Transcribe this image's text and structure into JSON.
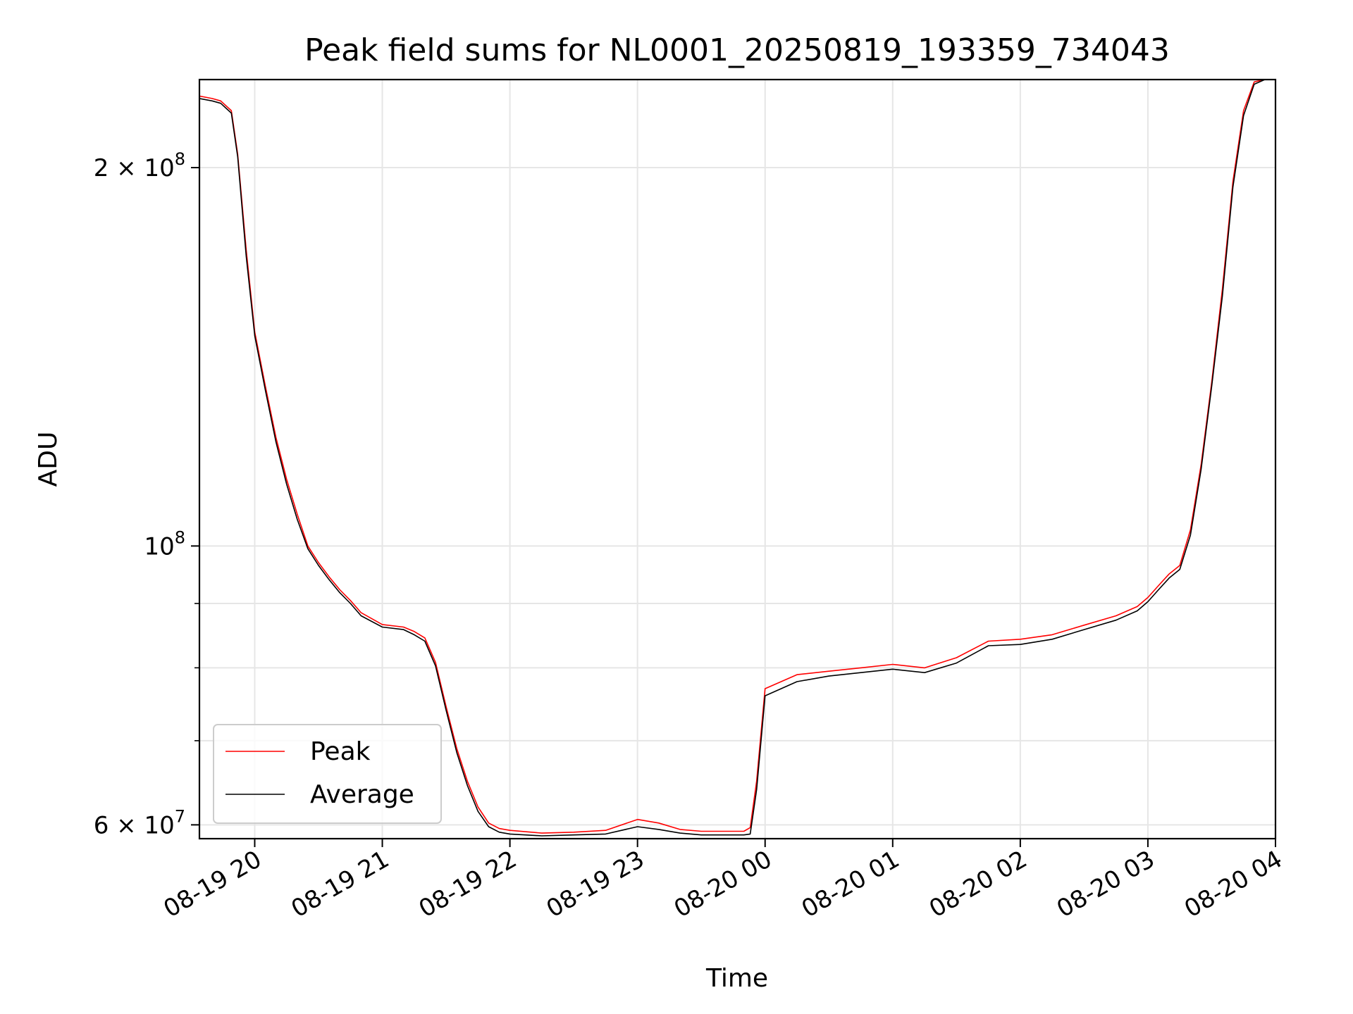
{
  "chart_data": {
    "type": "line",
    "title": "Peak field sums for NL0001_20250819_193359_734043",
    "xlabel": "Time",
    "ylabel": "ADU",
    "yscale": "log",
    "ylim": [
      58500000,
      235000000
    ],
    "xlim": [
      "2025-08-19 19:34",
      "2025-08-20 04:00"
    ],
    "grid": true,
    "legend_position": "lower-left",
    "x_ticks": [
      {
        "t": "2025-08-19 20:00",
        "label": "08-19 20"
      },
      {
        "t": "2025-08-19 21:00",
        "label": "08-19 21"
      },
      {
        "t": "2025-08-19 22:00",
        "label": "08-19 22"
      },
      {
        "t": "2025-08-19 23:00",
        "label": "08-19 23"
      },
      {
        "t": "2025-08-20 00:00",
        "label": "08-20 00"
      },
      {
        "t": "2025-08-20 01:00",
        "label": "08-20 01"
      },
      {
        "t": "2025-08-20 02:00",
        "label": "08-20 02"
      },
      {
        "t": "2025-08-20 03:00",
        "label": "08-20 03"
      },
      {
        "t": "2025-08-20 04:00",
        "label": "08-20 04"
      }
    ],
    "y_ticks_major": [
      {
        "value": 60000000,
        "base": "6 × 10",
        "exp": "7"
      },
      {
        "value": 100000000,
        "base": "10",
        "exp": "8"
      },
      {
        "value": 200000000,
        "base": "2 × 10",
        "exp": "8"
      }
    ],
    "y_ticks_minor": [
      70000000,
      80000000,
      90000000
    ],
    "series": [
      {
        "name": "Peak",
        "color": "#ff0000",
        "x": [
          "2025-08-19 19:34",
          "2025-08-19 19:40",
          "2025-08-19 19:44",
          "2025-08-19 19:49",
          "2025-08-19 19:52",
          "2025-08-19 19:56",
          "2025-08-19 20:00",
          "2025-08-19 20:05",
          "2025-08-19 20:10",
          "2025-08-19 20:15",
          "2025-08-19 20:20",
          "2025-08-19 20:25",
          "2025-08-19 20:30",
          "2025-08-19 20:35",
          "2025-08-19 20:40",
          "2025-08-19 20:45",
          "2025-08-19 20:50",
          "2025-08-19 21:00",
          "2025-08-19 21:10",
          "2025-08-19 21:15",
          "2025-08-19 21:20",
          "2025-08-19 21:25",
          "2025-08-19 21:30",
          "2025-08-19 21:35",
          "2025-08-19 21:40",
          "2025-08-19 21:45",
          "2025-08-19 21:50",
          "2025-08-19 21:55",
          "2025-08-19 22:00",
          "2025-08-19 22:15",
          "2025-08-19 22:30",
          "2025-08-19 22:45",
          "2025-08-19 23:00",
          "2025-08-19 23:10",
          "2025-08-19 23:20",
          "2025-08-19 23:30",
          "2025-08-19 23:40",
          "2025-08-19 23:50",
          "2025-08-19 23:53",
          "2025-08-19 23:56",
          "2025-08-20 00:00",
          "2025-08-20 00:15",
          "2025-08-20 00:30",
          "2025-08-20 00:45",
          "2025-08-20 01:00",
          "2025-08-20 01:15",
          "2025-08-20 01:30",
          "2025-08-20 01:45",
          "2025-08-20 02:00",
          "2025-08-20 02:15",
          "2025-08-20 02:30",
          "2025-08-20 02:45",
          "2025-08-20 02:55",
          "2025-08-20 03:00",
          "2025-08-20 03:05",
          "2025-08-20 03:10",
          "2025-08-20 03:15",
          "2025-08-20 03:20",
          "2025-08-20 03:25",
          "2025-08-20 03:30",
          "2025-08-20 03:35",
          "2025-08-20 03:40",
          "2025-08-20 03:45",
          "2025-08-20 03:50",
          "2025-08-20 03:55"
        ],
        "values": [
          228000000,
          227000000,
          226000000,
          222000000,
          205000000,
          172000000,
          148000000,
          134000000,
          122000000,
          113000000,
          106000000,
          100000000,
          97000000,
          94500000,
          92300000,
          90500000,
          88500000,
          86600000,
          86200000,
          85500000,
          84500000,
          80800000,
          74500000,
          69000000,
          65000000,
          62000000,
          60200000,
          59600000,
          59400000,
          59100000,
          59200000,
          59400000,
          60600000,
          60200000,
          59500000,
          59300000,
          59300000,
          59300000,
          59700000,
          65000000,
          77000000,
          79000000,
          79500000,
          80000000,
          80500000,
          80000000,
          81500000,
          84000000,
          84300000,
          85000000,
          86500000,
          88000000,
          89500000,
          91000000,
          93000000,
          95000000,
          96500000,
          103000000,
          116000000,
          135000000,
          160000000,
          195000000,
          222000000,
          234000000,
          235000000
        ]
      },
      {
        "name": "Average",
        "color": "#000000",
        "x": [
          "2025-08-19 19:34",
          "2025-08-19 19:40",
          "2025-08-19 19:44",
          "2025-08-19 19:49",
          "2025-08-19 19:52",
          "2025-08-19 19:56",
          "2025-08-19 20:00",
          "2025-08-19 20:05",
          "2025-08-19 20:10",
          "2025-08-19 20:15",
          "2025-08-19 20:20",
          "2025-08-19 20:25",
          "2025-08-19 20:30",
          "2025-08-19 20:35",
          "2025-08-19 20:40",
          "2025-08-19 20:45",
          "2025-08-19 20:50",
          "2025-08-19 21:00",
          "2025-08-19 21:10",
          "2025-08-19 21:15",
          "2025-08-19 21:20",
          "2025-08-19 21:25",
          "2025-08-19 21:30",
          "2025-08-19 21:35",
          "2025-08-19 21:40",
          "2025-08-19 21:45",
          "2025-08-19 21:50",
          "2025-08-19 21:55",
          "2025-08-19 22:00",
          "2025-08-19 22:15",
          "2025-08-19 22:30",
          "2025-08-19 22:45",
          "2025-08-19 23:00",
          "2025-08-19 23:10",
          "2025-08-19 23:20",
          "2025-08-19 23:30",
          "2025-08-19 23:40",
          "2025-08-19 23:50",
          "2025-08-19 23:53",
          "2025-08-19 23:56",
          "2025-08-20 00:00",
          "2025-08-20 00:15",
          "2025-08-20 00:30",
          "2025-08-20 00:45",
          "2025-08-20 01:00",
          "2025-08-20 01:15",
          "2025-08-20 01:30",
          "2025-08-20 01:45",
          "2025-08-20 02:00",
          "2025-08-20 02:15",
          "2025-08-20 02:30",
          "2025-08-20 02:45",
          "2025-08-20 02:55",
          "2025-08-20 03:00",
          "2025-08-20 03:05",
          "2025-08-20 03:10",
          "2025-08-20 03:15",
          "2025-08-20 03:20",
          "2025-08-20 03:25",
          "2025-08-20 03:30",
          "2025-08-20 03:35",
          "2025-08-20 03:40",
          "2025-08-20 03:45",
          "2025-08-20 03:50",
          "2025-08-20 03:55"
        ],
        "values": [
          227000000,
          226000000,
          225000000,
          221000000,
          204000000,
          170000000,
          147000000,
          133000000,
          121000000,
          112000000,
          105000000,
          99500000,
          96500000,
          94000000,
          91800000,
          90000000,
          88000000,
          86200000,
          85800000,
          85000000,
          84000000,
          80300000,
          74000000,
          68500000,
          64500000,
          61500000,
          59800000,
          59200000,
          59000000,
          58800000,
          58900000,
          59000000,
          59800000,
          59500000,
          59100000,
          58900000,
          58900000,
          58900000,
          59000000,
          64000000,
          76000000,
          78000000,
          78800000,
          79300000,
          79800000,
          79300000,
          80700000,
          83300000,
          83500000,
          84300000,
          85800000,
          87300000,
          88800000,
          90300000,
          92300000,
          94300000,
          95800000,
          102000000,
          115000000,
          134000000,
          158000000,
          193000000,
          220000000,
          233000000,
          235000000
        ]
      }
    ]
  }
}
